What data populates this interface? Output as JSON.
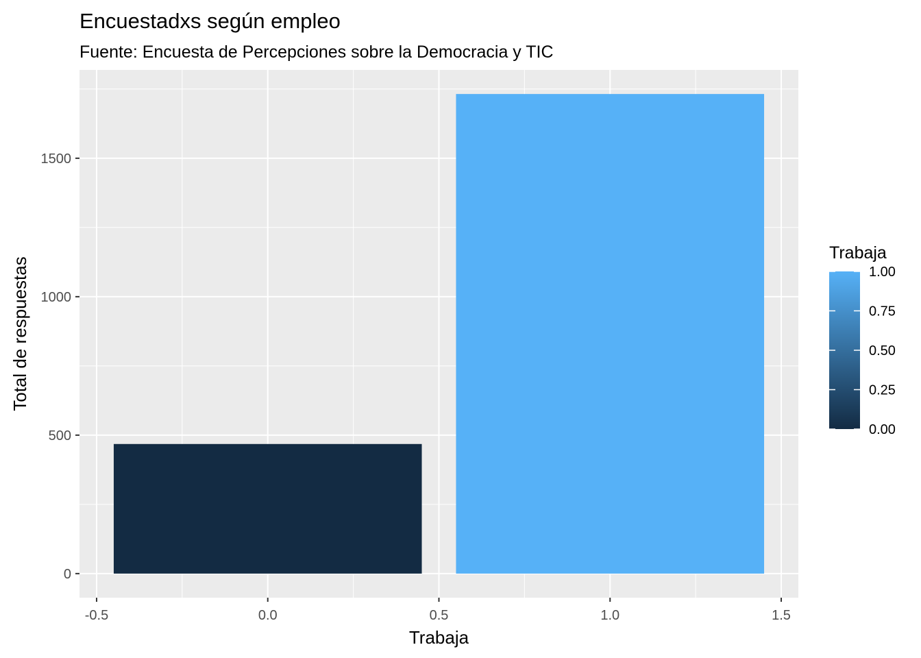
{
  "chart_data": {
    "type": "bar",
    "title": "Encuestadxs según empleo",
    "subtitle": "Fuente: Encuesta de Percepciones sobre la Democracia y TIC",
    "xlabel": "Trabaja",
    "ylabel": "Total de respuestas",
    "x": [
      0,
      1
    ],
    "values": [
      468,
      1732
    ],
    "fill_values": [
      0,
      1
    ],
    "xlim": [
      -0.55,
      1.55
    ],
    "ylim": [
      -87,
      1819
    ],
    "x_ticks": [
      "-0.5",
      "0.0",
      "0.5",
      "1.0",
      "1.5"
    ],
    "y_ticks": [
      "0",
      "500",
      "1000",
      "1500"
    ],
    "grid": true,
    "legend": {
      "title": "Trabaja",
      "position": "right",
      "labels": [
        "1.00",
        "0.75",
        "0.50",
        "0.25",
        "0.00"
      ],
      "colors": {
        "low": "#132B43",
        "high": "#56B1F7"
      }
    },
    "colors": {
      "panel": "#EBEBEB",
      "grid": "#FFFFFF"
    }
  }
}
